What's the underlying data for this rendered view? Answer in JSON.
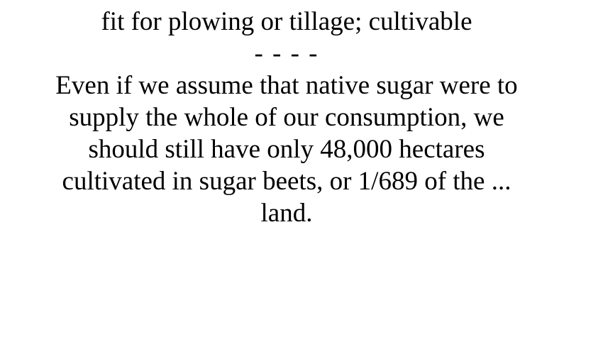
{
  "card": {
    "definition": "fit for plowing or tillage; cultivable",
    "separator": "- - - -",
    "example_lines": [
      "Even if we assume that native sugar were to",
      "supply the whole of our consumption, we",
      "should still have only 48,000 hectares",
      "cultivated in sugar beets, or 1/689 of the ...",
      "land."
    ]
  }
}
